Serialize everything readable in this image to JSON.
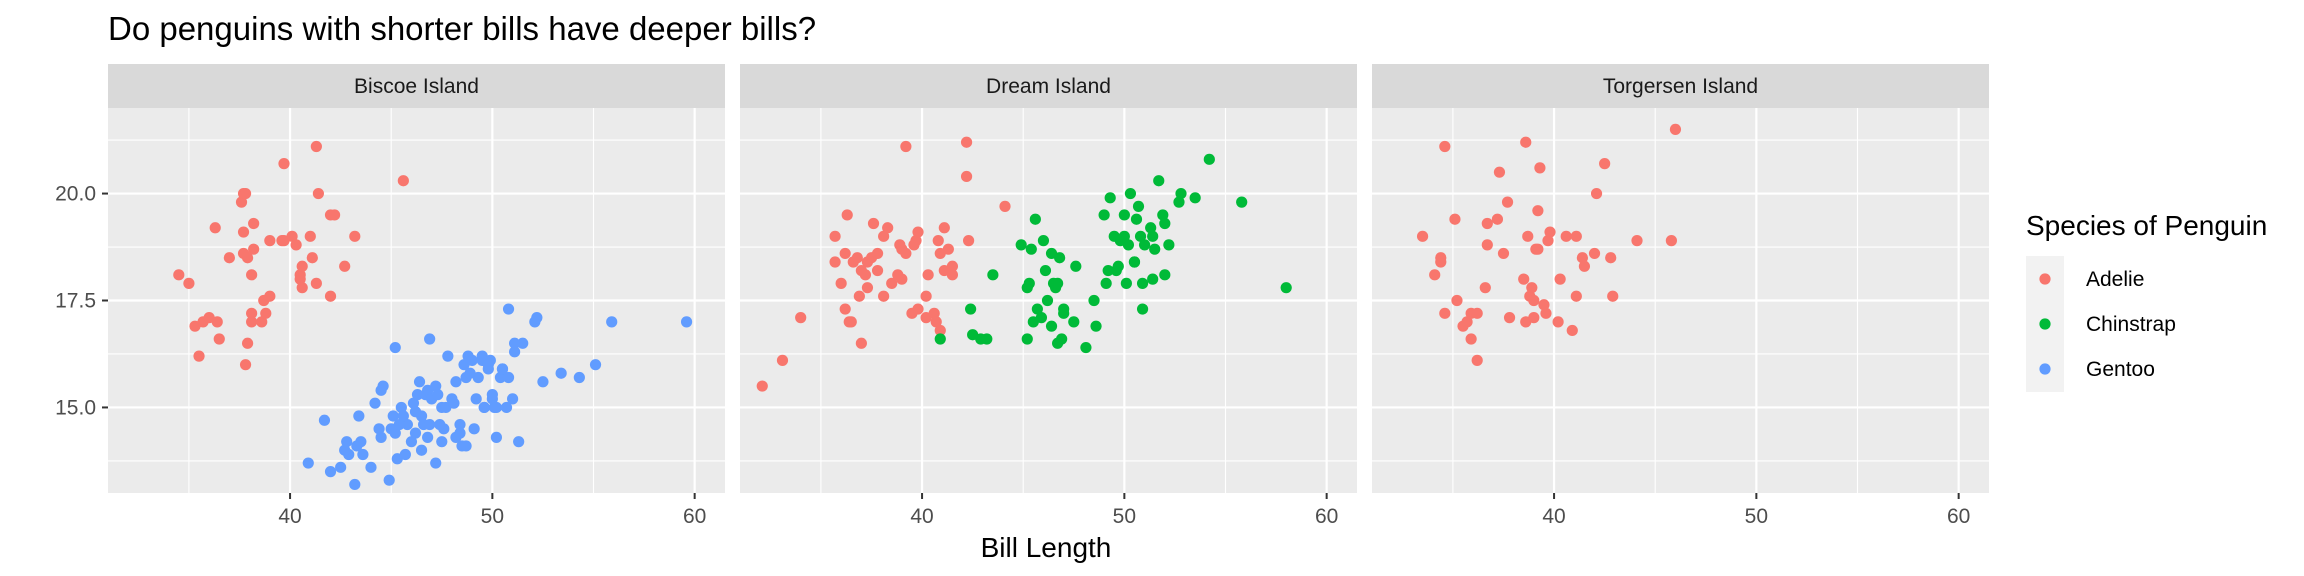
{
  "chart_data": {
    "type": "scatter",
    "title": "Do penguins with shorter bills have deeper bills?",
    "xlabel": "Bill Length",
    "ylabel": "",
    "xlim": [
      31,
      61.5
    ],
    "ylim": [
      13.0,
      22.0
    ],
    "x_ticks": [
      40,
      50,
      60
    ],
    "y_ticks": [
      15.0,
      17.5,
      20.0
    ],
    "x_tick_labels": [
      "40",
      "50",
      "60"
    ],
    "y_tick_labels": [
      "15.0",
      "17.5",
      "20.0"
    ],
    "grid": true,
    "legend": {
      "title": "Species of Penguin",
      "placement": "right",
      "entries": [
        "Adelie",
        "Chinstrap",
        "Gentoo"
      ]
    },
    "colors": {
      "Adelie": "#F8766D",
      "Chinstrap": "#00BA38",
      "Gentoo": "#619CFF",
      "panel_bg": "#EBEBEB",
      "strip_bg": "#D9D9D9",
      "grid": "#FFFFFF"
    },
    "panels": [
      {
        "label": "Biscoe Island",
        "series": [
          {
            "name": "Adelie",
            "x": [
              34.5,
              35.0,
              35.3,
              35.7,
              36.0,
              36.4,
              36.5,
              37.0,
              37.6,
              37.7,
              37.8,
              37.7,
              37.9,
              38.1,
              38.2,
              38.6,
              38.8,
              38.1,
              37.8,
              37.9,
              38.1,
              38.7,
              39.0,
              39.6,
              39.7,
              40.1,
              40.3,
              40.6,
              40.5,
              41.0,
              41.1,
              41.4,
              41.3,
              42.0,
              42.2,
              42.7,
              43.2,
              45.6,
              39.7,
              40.6,
              41.3,
              42.0,
              37.7,
              39.0,
              40.5,
              35.5,
              36.3,
              38.2
            ],
            "y": [
              18.1,
              17.9,
              16.9,
              17.0,
              17.1,
              17.0,
              16.6,
              18.5,
              19.8,
              20.0,
              20.0,
              18.6,
              18.5,
              18.1,
              18.7,
              17.0,
              17.2,
              17.2,
              16.0,
              16.5,
              17.0,
              17.5,
              17.6,
              18.9,
              18.9,
              19.0,
              18.8,
              17.8,
              18.1,
              19.0,
              18.5,
              20.0,
              21.1,
              19.5,
              19.5,
              18.3,
              19.0,
              20.3,
              20.7,
              18.3,
              17.9,
              17.6,
              19.1,
              18.9,
              18.0,
              16.2,
              19.2,
              19.3
            ]
          },
          {
            "name": "Gentoo",
            "x": [
              40.9,
              42.0,
              42.5,
              42.8,
              43.2,
              43.3,
              42.9,
              43.5,
              44.0,
              44.2,
              44.5,
              44.6,
              45.0,
              45.1,
              45.2,
              45.3,
              45.5,
              45.7,
              45.8,
              46.0,
              46.1,
              46.2,
              46.3,
              46.4,
              46.5,
              46.6,
              46.7,
              46.8,
              46.9,
              47.0,
              47.2,
              47.3,
              47.5,
              47.6,
              47.7,
              47.8,
              48.0,
              48.1,
              48.2,
              48.4,
              48.5,
              48.6,
              48.7,
              48.8,
              49.0,
              49.1,
              49.2,
              49.3,
              49.5,
              49.6,
              49.8,
              49.9,
              50.0,
              50.1,
              50.2,
              50.4,
              50.5,
              50.7,
              50.8,
              51.0,
              51.1,
              51.3,
              51.5,
              52.1,
              52.2,
              53.4,
              54.3,
              55.1,
              55.9,
              59.6,
              41.7,
              43.4,
              43.6,
              44.4,
              44.9,
              45.4,
              46.2,
              46.8,
              47.5,
              48.4,
              49.5,
              50.0,
              50.5,
              51.1,
              52.5,
              44.5,
              45.6,
              46.9,
              47.2,
              48.7,
              49.6,
              50.2,
              42.7,
              45.2,
              46.5,
              47.4,
              48.2,
              48.9,
              49.8,
              50.8
            ],
            "y": [
              13.7,
              13.5,
              13.6,
              14.2,
              13.2,
              14.1,
              13.9,
              14.2,
              13.6,
              15.1,
              14.3,
              15.5,
              14.5,
              14.8,
              14.4,
              13.8,
              15.0,
              13.9,
              14.6,
              14.2,
              15.1,
              14.4,
              15.3,
              15.6,
              14.8,
              14.6,
              15.3,
              15.4,
              14.6,
              15.2,
              15.5,
              15.3,
              15.0,
              14.5,
              15.0,
              16.2,
              15.2,
              15.1,
              14.3,
              14.6,
              14.1,
              16.0,
              15.7,
              16.2,
              16.1,
              14.5,
              15.2,
              15.7,
              16.2,
              15.0,
              15.9,
              16.1,
              15.2,
              15.0,
              14.3,
              15.7,
              15.9,
              15.0,
              17.3,
              15.2,
              16.3,
              14.2,
              16.5,
              17.0,
              17.1,
              15.8,
              15.7,
              16.0,
              17.0,
              17.0,
              14.7,
              14.8,
              13.9,
              14.5,
              13.3,
              14.6,
              14.9,
              14.3,
              14.2,
              14.4,
              16.1,
              15.3,
              15.9,
              16.5,
              15.6,
              15.4,
              14.8,
              16.6,
              13.7,
              14.1,
              15.0,
              15.0,
              14.0,
              16.4,
              14.0,
              14.6,
              15.6,
              15.8,
              16.0,
              15.7
            ]
          }
        ]
      },
      {
        "label": "Dream Island",
        "series": [
          {
            "name": "Adelie",
            "x": [
              32.1,
              33.1,
              34.0,
              35.7,
              36.0,
              36.2,
              36.3,
              36.4,
              36.6,
              36.8,
              37.0,
              37.2,
              37.3,
              37.5,
              37.6,
              37.8,
              38.1,
              38.3,
              38.5,
              38.8,
              39.0,
              39.2,
              39.5,
              39.6,
              39.7,
              40.2,
              40.3,
              40.6,
              40.8,
              40.9,
              41.1,
              41.3,
              41.5,
              42.2,
              42.3,
              44.1,
              36.9,
              37.3,
              38.9,
              39.8,
              40.7,
              41.5,
              35.7,
              36.2,
              37.0,
              37.8,
              38.1,
              39.2,
              39.8,
              40.9,
              36.5,
              39.0,
              40.2,
              41.1,
              42.2
            ],
            "y": [
              15.5,
              16.1,
              17.1,
              18.4,
              17.9,
              17.3,
              19.5,
              17.0,
              18.4,
              18.5,
              16.5,
              18.1,
              17.8,
              18.5,
              19.3,
              18.2,
              17.6,
              19.2,
              17.9,
              18.1,
              18.7,
              21.1,
              17.2,
              18.8,
              18.9,
              17.1,
              18.1,
              17.2,
              18.9,
              18.6,
              18.2,
              18.7,
              18.3,
              21.2,
              18.9,
              19.7,
              17.6,
              18.4,
              18.8,
              19.1,
              17.0,
              18.1,
              19.0,
              18.6,
              18.2,
              18.6,
              19.0,
              18.6,
              17.3,
              16.8,
              17.0,
              18.0,
              17.6,
              19.2,
              20.4
            ]
          },
          {
            "name": "Chinstrap",
            "x": [
              40.9,
              42.4,
              42.5,
              42.9,
              43.2,
              44.9,
              45.2,
              45.4,
              45.5,
              45.6,
              45.7,
              45.9,
              46.0,
              46.1,
              46.2,
              46.4,
              46.5,
              46.6,
              46.7,
              46.8,
              46.9,
              47.0,
              47.5,
              47.6,
              48.1,
              48.5,
              49.0,
              49.3,
              49.5,
              49.6,
              49.7,
              49.8,
              50.0,
              50.1,
              50.2,
              50.3,
              50.5,
              50.6,
              50.7,
              50.8,
              50.9,
              51.0,
              51.3,
              51.4,
              51.5,
              51.7,
              51.9,
              52.0,
              52.2,
              52.7,
              52.8,
              53.5,
              54.2,
              55.8,
              58.0,
              45.2,
              46.4,
              47.0,
              48.6,
              49.2,
              50.0,
              50.9,
              52.0,
              43.5,
              45.3,
              46.7,
              49.1,
              50.5,
              51.4
            ],
            "y": [
              16.6,
              17.3,
              16.7,
              16.6,
              16.6,
              18.8,
              16.6,
              18.7,
              17.0,
              19.4,
              17.3,
              17.1,
              18.9,
              18.2,
              17.5,
              18.6,
              17.9,
              17.8,
              17.9,
              18.5,
              16.6,
              17.3,
              17.0,
              18.3,
              16.4,
              17.5,
              19.5,
              19.9,
              19.0,
              18.2,
              18.3,
              18.9,
              19.5,
              17.9,
              18.8,
              20.0,
              18.4,
              19.4,
              19.7,
              19.0,
              17.9,
              18.8,
              19.2,
              19.0,
              18.7,
              20.3,
              19.5,
              18.1,
              18.8,
              19.8,
              20.0,
              19.9,
              20.8,
              19.8,
              17.8,
              17.8,
              16.9,
              17.2,
              16.9,
              18.2,
              19.0,
              17.3,
              19.3,
              18.1,
              17.9,
              16.5,
              17.9,
              18.4,
              18.0
            ]
          }
        ]
      },
      {
        "label": "Torgersen Island",
        "series": [
          {
            "name": "Adelie",
            "x": [
              33.5,
              34.1,
              34.4,
              34.6,
              34.6,
              35.1,
              35.2,
              35.5,
              35.7,
              35.9,
              36.2,
              36.6,
              36.7,
              36.7,
              37.2,
              37.3,
              37.7,
              37.8,
              38.6,
              38.6,
              38.7,
              38.8,
              38.9,
              39.0,
              39.1,
              39.2,
              39.3,
              39.5,
              39.6,
              39.7,
              39.8,
              40.2,
              40.6,
              40.9,
              41.1,
              41.4,
              41.5,
              42.1,
              42.5,
              42.8,
              42.9,
              44.1,
              45.8,
              46.0,
              35.9,
              36.2,
              38.5,
              39.2,
              40.3,
              41.1,
              34.4,
              42.0,
              37.5,
              39.0
            ],
            "y": [
              19.0,
              18.1,
              18.4,
              21.1,
              17.2,
              19.4,
              17.5,
              16.9,
              17.0,
              16.6,
              16.1,
              17.8,
              19.3,
              18.8,
              19.4,
              20.5,
              19.8,
              17.1,
              21.2,
              17.0,
              19.0,
              17.6,
              17.8,
              17.1,
              18.7,
              19.6,
              20.6,
              17.4,
              17.2,
              18.9,
              19.1,
              17.0,
              19.0,
              16.8,
              17.6,
              18.5,
              18.3,
              20.0,
              20.7,
              18.5,
              17.6,
              18.9,
              18.9,
              21.5,
              17.2,
              17.2,
              18.0,
              18.7,
              18.0,
              19.0,
              18.5,
              18.6,
              18.6,
              17.5
            ]
          }
        ]
      }
    ]
  }
}
